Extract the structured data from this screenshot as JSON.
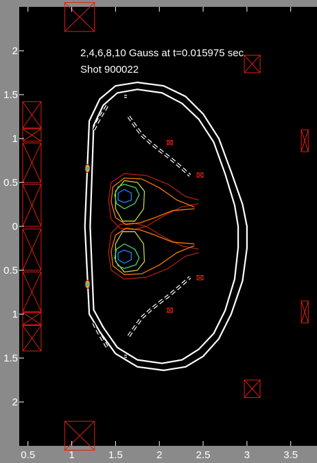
{
  "chart_data": {
    "type": "line",
    "title": "",
    "xlabel": "",
    "ylabel": "",
    "xlim": [
      0.4,
      3.8
    ],
    "ylim": [
      -2.5,
      2.5
    ],
    "grid": false,
    "x_ticks": [
      0.5,
      1,
      1.5,
      2,
      2.5,
      3,
      3.5
    ],
    "x_tick_labels": [
      "0.5",
      "1",
      "1.5",
      "2",
      "2.5",
      "3",
      "3.5"
    ],
    "y_ticks": [
      2,
      1.5,
      1,
      0.5,
      0,
      -0.5,
      -1,
      -1.5,
      -2
    ],
    "y_tick_labels": [
      "2",
      "1.5",
      "1",
      "0.5",
      "0",
      "0.5",
      "1",
      "1.5",
      "2"
    ],
    "annotations": [
      "2,4,6,8,10 Gauss at t=0.015975 sec",
      "Shot 900022"
    ],
    "contour_levels_gauss": [
      2,
      4,
      6,
      8,
      10
    ],
    "contour_colors": [
      "#b02010",
      "#ff7a00",
      "#c8d840",
      "#40d870",
      "#2080ff"
    ],
    "colors": {
      "axes_background": "#000000",
      "figure_background": "#8a8a8a",
      "vessel_wall": "#ffffff",
      "coils": "#e02010"
    },
    "series": [
      {
        "kind": "vessel-outer-wall",
        "x": [
          1.15,
          1.2,
          1.32,
          1.5,
          1.75,
          2.05,
          2.3,
          2.5,
          2.68,
          2.82,
          2.95,
          3.0,
          3.0,
          2.95,
          2.82,
          2.68,
          2.5,
          2.3,
          2.05,
          1.75,
          1.5,
          1.32,
          1.2,
          1.15,
          1.15
        ],
        "y": [
          0.0,
          1.2,
          1.45,
          1.6,
          1.64,
          1.6,
          1.48,
          1.28,
          1.0,
          0.62,
          0.25,
          0.0,
          -0.25,
          -0.62,
          -1.0,
          -1.28,
          -1.48,
          -1.6,
          -1.64,
          -1.6,
          -1.45,
          -1.2,
          -1.0,
          0.0,
          0.0
        ]
      },
      {
        "kind": "vessel-inner-wall",
        "x": [
          1.21,
          1.25,
          1.36,
          1.52,
          1.75,
          2.03,
          2.26,
          2.45,
          2.62,
          2.75,
          2.86,
          2.9,
          2.9,
          2.86,
          2.75,
          2.62,
          2.45,
          2.26,
          2.03,
          1.75,
          1.52,
          1.36,
          1.25,
          1.21,
          1.21
        ],
        "y": [
          0.0,
          1.15,
          1.38,
          1.52,
          1.56,
          1.52,
          1.4,
          1.22,
          0.96,
          0.6,
          0.24,
          0.0,
          -0.24,
          -0.6,
          -0.96,
          -1.22,
          -1.4,
          -1.52,
          -1.56,
          -1.52,
          -1.38,
          -1.15,
          -0.95,
          0.0,
          0.0
        ]
      },
      {
        "kind": "divertor-plate",
        "segments": [
          {
            "x": [
              1.25,
              1.3,
              1.36,
              1.42
            ],
            "y": [
              1.1,
              1.2,
              1.3,
              1.4
            ]
          },
          {
            "x": [
              1.6,
              1.63
            ],
            "y": [
              1.48,
              1.48
            ]
          },
          {
            "x": [
              1.65,
              1.72,
              1.8,
              1.9,
              2.0,
              2.12,
              2.25,
              2.35
            ],
            "y": [
              1.25,
              1.15,
              1.04,
              0.95,
              0.87,
              0.78,
              0.67,
              0.58
            ]
          },
          {
            "x": [
              1.25,
              1.3,
              1.36,
              1.42
            ],
            "y": [
              -1.1,
              -1.2,
              -1.3,
              -1.4
            ]
          },
          {
            "x": [
              1.6,
              1.63
            ],
            "y": [
              -1.48,
              -1.48
            ]
          },
          {
            "x": [
              1.65,
              1.72,
              1.8,
              1.9,
              2.0,
              2.12,
              2.25,
              2.35
            ],
            "y": [
              -1.25,
              -1.15,
              -1.04,
              -0.95,
              -0.87,
              -0.78,
              -0.67,
              -0.58
            ]
          }
        ]
      },
      {
        "kind": "contour",
        "level": 2,
        "segments": [
          {
            "x": [
              2.45,
              2.3,
              2.1,
              1.85,
              1.6,
              1.45,
              1.42,
              1.45,
              1.55,
              1.7,
              1.85,
              2.05,
              2.25,
              2.45
            ],
            "y": [
              0.3,
              0.34,
              0.48,
              0.58,
              0.6,
              0.5,
              0.3,
              0.08,
              -0.02,
              -0.04,
              0.0,
              0.12,
              0.22,
              0.26
            ]
          },
          {
            "x": [
              2.45,
              2.3,
              2.1,
              1.85,
              1.6,
              1.45,
              1.42,
              1.45,
              1.55,
              1.7,
              1.85,
              2.05,
              2.25,
              2.45
            ],
            "y": [
              -0.3,
              -0.34,
              -0.48,
              -0.58,
              -0.6,
              -0.5,
              -0.3,
              -0.08,
              0.02,
              0.04,
              0.0,
              -0.12,
              -0.22,
              -0.26
            ]
          }
        ]
      },
      {
        "kind": "contour",
        "level": 4,
        "segments": [
          {
            "x": [
              2.4,
              2.2,
              2.0,
              1.8,
              1.6,
              1.47,
              1.45,
              1.5,
              1.62,
              1.78,
              1.95,
              2.15,
              2.4
            ],
            "y": [
              0.22,
              0.3,
              0.44,
              0.54,
              0.55,
              0.45,
              0.28,
              0.1,
              0.02,
              0.04,
              0.1,
              0.18,
              0.2
            ]
          },
          {
            "x": [
              2.4,
              2.2,
              2.0,
              1.8,
              1.6,
              1.47,
              1.45,
              1.5,
              1.62,
              1.78,
              1.95,
              2.15,
              2.4
            ],
            "y": [
              -0.22,
              -0.3,
              -0.44,
              -0.54,
              -0.55,
              -0.45,
              -0.28,
              -0.1,
              -0.02,
              -0.04,
              -0.1,
              -0.18,
              -0.2
            ]
          }
        ]
      },
      {
        "kind": "contour",
        "level": 6,
        "segments": [
          {
            "x": [
              1.6,
              1.75,
              1.83,
              1.82,
              1.72,
              1.58,
              1.5,
              1.5,
              1.6
            ],
            "y": [
              0.52,
              0.5,
              0.4,
              0.2,
              0.06,
              0.06,
              0.2,
              0.4,
              0.52
            ]
          },
          {
            "x": [
              1.6,
              1.75,
              1.83,
              1.82,
              1.72,
              1.58,
              1.5,
              1.5,
              1.6
            ],
            "y": [
              -0.52,
              -0.5,
              -0.4,
              -0.2,
              -0.06,
              -0.06,
              -0.2,
              -0.4,
              -0.52
            ]
          }
        ]
      },
      {
        "kind": "contour",
        "level": 8,
        "segments": [
          {
            "x": [
              1.6,
              1.73,
              1.77,
              1.72,
              1.6,
              1.51,
              1.49,
              1.53,
              1.6
            ],
            "y": [
              0.48,
              0.44,
              0.36,
              0.26,
              0.2,
              0.26,
              0.36,
              0.45,
              0.48
            ]
          },
          {
            "x": [
              1.6,
              1.73,
              1.77,
              1.72,
              1.6,
              1.51,
              1.49,
              1.53,
              1.6
            ],
            "y": [
              -0.48,
              -0.44,
              -0.36,
              -0.26,
              -0.2,
              -0.26,
              -0.36,
              -0.45,
              -0.48
            ]
          }
        ]
      },
      {
        "kind": "contour",
        "level": 10,
        "segments": [
          {
            "x": [
              1.6,
              1.68,
              1.68,
              1.6,
              1.53,
              1.53,
              1.6
            ],
            "y": [
              0.42,
              0.38,
              0.3,
              0.27,
              0.3,
              0.38,
              0.42
            ]
          },
          {
            "x": [
              1.6,
              1.68,
              1.68,
              1.6,
              1.53,
              1.53,
              1.6
            ],
            "y": [
              -0.42,
              -0.38,
              -0.3,
              -0.27,
              -0.3,
              -0.38,
              -0.42
            ]
          }
        ]
      },
      {
        "kind": "contour-wall-spots",
        "points": [
          {
            "x": 1.18,
            "y": 0.66
          },
          {
            "x": 1.18,
            "y": -0.66
          }
        ]
      }
    ],
    "coils": [
      {
        "x": [
          0.92,
          1.26
        ],
        "y": [
          2.22,
          2.55
        ]
      },
      {
        "x": [
          0.92,
          1.26
        ],
        "y": [
          -2.22,
          -2.55
        ]
      },
      {
        "x": [
          0.44,
          0.65
        ],
        "y": [
          1.12,
          1.42
        ]
      },
      {
        "x": [
          0.44,
          0.65
        ],
        "y": [
          0.97,
          1.11
        ]
      },
      {
        "x": [
          0.44,
          0.65
        ],
        "y": [
          0.5,
          0.95
        ]
      },
      {
        "x": [
          0.44,
          0.65
        ],
        "y": [
          0.0,
          0.48
        ]
      },
      {
        "x": [
          0.44,
          0.65
        ],
        "y": [
          -0.5,
          -0.03
        ]
      },
      {
        "x": [
          0.44,
          0.65
        ],
        "y": [
          -0.97,
          -0.52
        ]
      },
      {
        "x": [
          0.44,
          0.65
        ],
        "y": [
          -1.12,
          -0.98
        ]
      },
      {
        "x": [
          0.44,
          0.65
        ],
        "y": [
          -1.42,
          -1.13
        ]
      },
      {
        "x": [
          2.97,
          3.15
        ],
        "y": [
          1.75,
          1.95
        ]
      },
      {
        "x": [
          2.97,
          3.15
        ],
        "y": [
          -1.75,
          -1.95
        ]
      },
      {
        "x": [
          3.62,
          3.7
        ],
        "y": [
          0.85,
          1.1
        ]
      },
      {
        "x": [
          3.62,
          3.7
        ],
        "y": [
          -0.85,
          -1.1
        ]
      },
      {
        "x": [
          2.09,
          2.15
        ],
        "y": [
          0.93,
          0.98
        ]
      },
      {
        "x": [
          2.09,
          2.15
        ],
        "y": [
          -0.93,
          -0.98
        ]
      },
      {
        "x": [
          2.43,
          2.5
        ],
        "y": [
          0.56,
          0.61
        ]
      },
      {
        "x": [
          2.43,
          2.5
        ],
        "y": [
          -0.56,
          -0.61
        ]
      }
    ]
  }
}
